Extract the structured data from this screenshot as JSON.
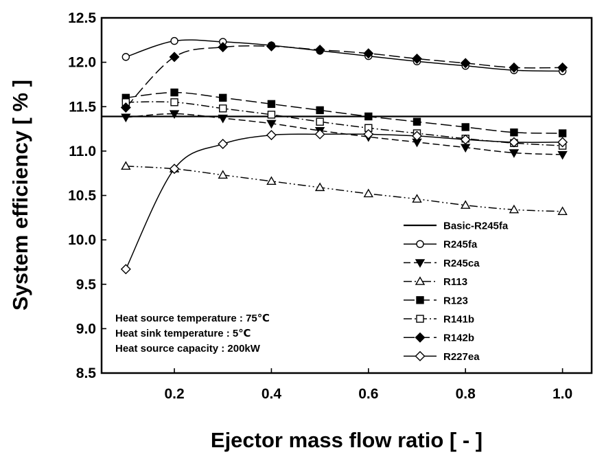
{
  "chart_data": {
    "type": "line",
    "xlabel": "Ejector mass flow ratio [ - ]",
    "ylabel": "System efficiency [ % ]",
    "xlim": [
      0.05,
      1.06
    ],
    "ylim": [
      8.5,
      12.5
    ],
    "x_ticks": [
      "0.2",
      "0.4",
      "0.6",
      "0.8",
      "1.0"
    ],
    "y_ticks": [
      "8.5",
      "9.0",
      "9.5",
      "10.0",
      "10.5",
      "11.0",
      "11.5",
      "12.0",
      "12.5"
    ],
    "grid": false,
    "legend_position": "bottom-right",
    "annotations": [
      "Heat source temperature : 75℃",
      "Heat sink temperature : 5℃",
      "Heat source capacity : 200kW"
    ],
    "series": [
      {
        "name": "Basic-R245fa",
        "line": "solid",
        "marker": "none",
        "color": "#000000",
        "x": [
          0.05,
          1.06
        ],
        "values": [
          11.39,
          11.39
        ]
      },
      {
        "name": "R245fa",
        "line": "solid",
        "marker": "circle-open",
        "color": "#000000",
        "x": [
          0.1,
          0.2,
          0.3,
          0.4,
          0.5,
          0.6,
          0.7,
          0.8,
          0.9,
          1.0
        ],
        "values": [
          12.06,
          12.24,
          12.23,
          12.19,
          12.13,
          12.07,
          12.01,
          11.96,
          11.91,
          11.9
        ]
      },
      {
        "name": "R245ca",
        "line": "dash",
        "marker": "triangle-down-filled",
        "color": "#000000",
        "x": [
          0.1,
          0.2,
          0.3,
          0.4,
          0.5,
          0.6,
          0.7,
          0.8,
          0.9,
          1.0
        ],
        "values": [
          11.38,
          11.42,
          11.37,
          11.31,
          11.23,
          11.16,
          11.1,
          11.04,
          10.98,
          10.96
        ]
      },
      {
        "name": "R113",
        "line": "dash-dot-dot",
        "marker": "triangle-up-open",
        "color": "#000000",
        "x": [
          0.1,
          0.2,
          0.3,
          0.4,
          0.5,
          0.6,
          0.7,
          0.8,
          0.9,
          1.0
        ],
        "values": [
          10.83,
          10.8,
          10.73,
          10.66,
          10.59,
          10.52,
          10.46,
          10.39,
          10.34,
          10.32
        ]
      },
      {
        "name": "R123",
        "line": "long-dash",
        "marker": "square-filled",
        "color": "#000000",
        "x": [
          0.1,
          0.2,
          0.3,
          0.4,
          0.5,
          0.6,
          0.7,
          0.8,
          0.9,
          1.0
        ],
        "values": [
          11.6,
          11.66,
          11.6,
          11.53,
          11.46,
          11.39,
          11.33,
          11.27,
          11.21,
          11.2
        ]
      },
      {
        "name": "R141b",
        "line": "dash-dot",
        "marker": "square-open",
        "color": "#000000",
        "x": [
          0.1,
          0.2,
          0.3,
          0.4,
          0.5,
          0.6,
          0.7,
          0.8,
          0.9,
          1.0
        ],
        "values": [
          11.55,
          11.55,
          11.48,
          11.41,
          11.33,
          11.26,
          11.2,
          11.14,
          11.09,
          11.06
        ]
      },
      {
        "name": "R142b",
        "line": "long-dash",
        "marker": "diamond-filled",
        "color": "#000000",
        "x": [
          0.1,
          0.2,
          0.3,
          0.4,
          0.5,
          0.6,
          0.7,
          0.8,
          0.9,
          1.0
        ],
        "values": [
          11.49,
          12.06,
          12.17,
          12.18,
          12.14,
          12.1,
          12.04,
          11.99,
          11.94,
          11.94
        ]
      },
      {
        "name": "R227ea",
        "line": "solid",
        "marker": "diamond-open",
        "color": "#000000",
        "x": [
          0.1,
          0.2,
          0.3,
          0.4,
          0.5,
          0.6,
          0.7,
          0.8,
          0.9,
          1.0
        ],
        "values": [
          9.67,
          10.8,
          11.08,
          11.18,
          11.19,
          11.19,
          11.17,
          11.13,
          11.1,
          11.1
        ]
      }
    ]
  }
}
